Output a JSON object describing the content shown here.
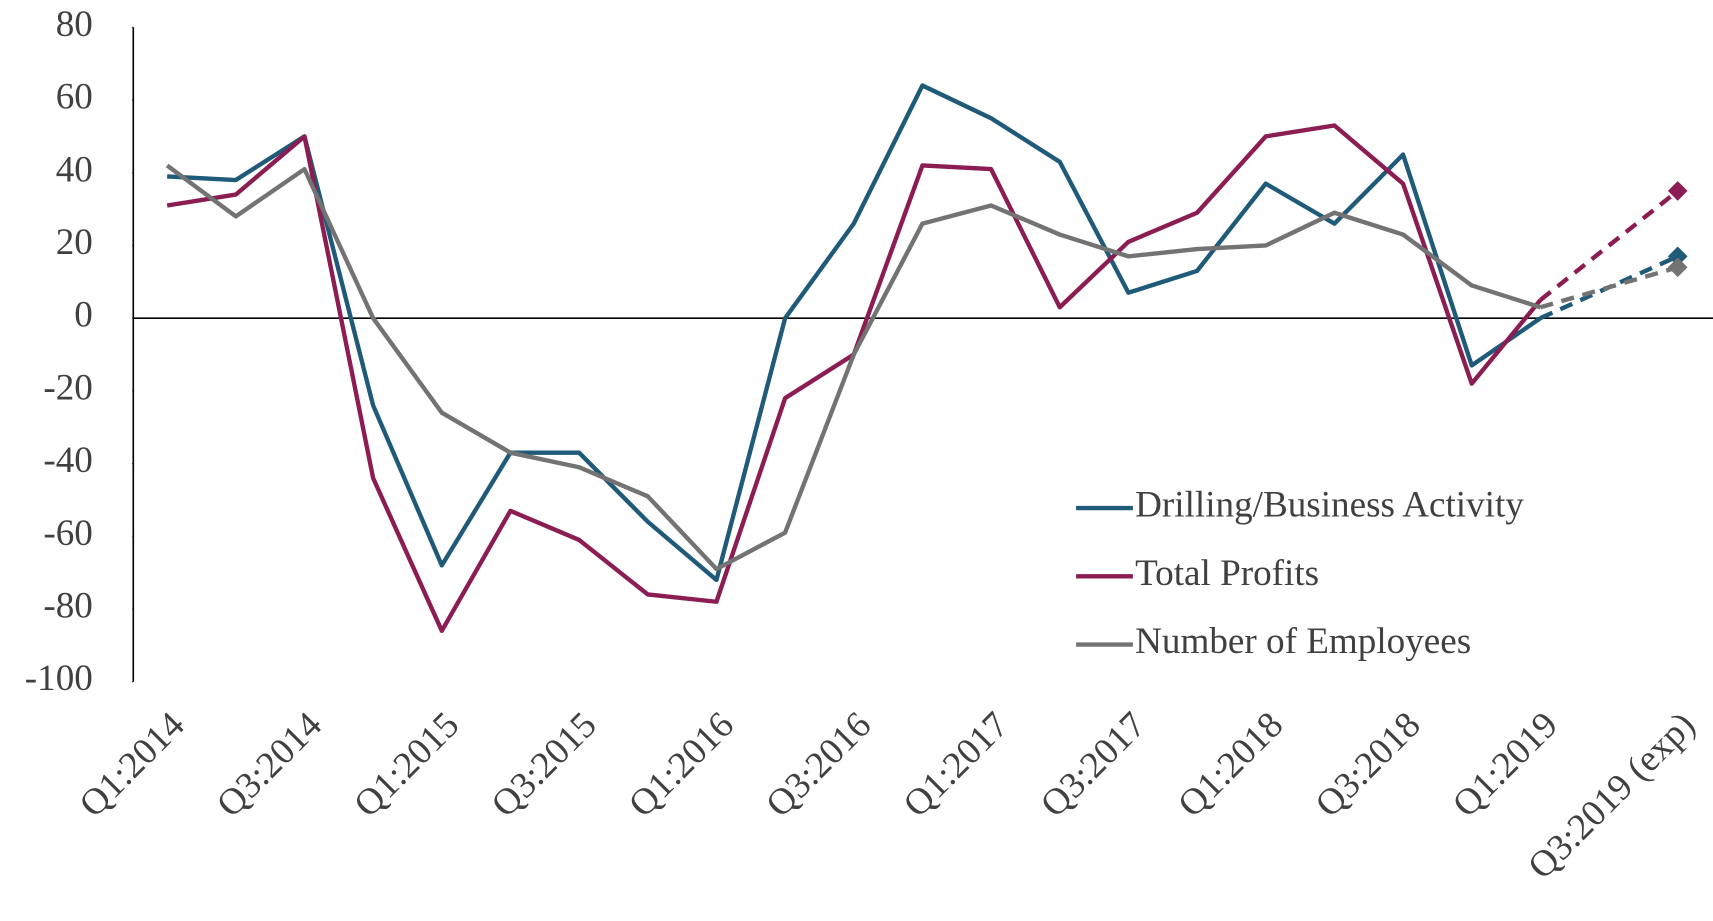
{
  "chart_data": {
    "type": "line",
    "categories": [
      "Q1:2014",
      null,
      "Q3:2014",
      null,
      "Q1:2015",
      null,
      "Q3:2015",
      null,
      "Q1:2016",
      null,
      "Q3:2016",
      null,
      "Q1:2017",
      null,
      "Q3:2017",
      null,
      "Q1:2018",
      null,
      "Q3:2018",
      null,
      "Q1:2019",
      null,
      "Q3:2019 (exp)"
    ],
    "series": [
      {
        "name": "Drilling/Business Activity",
        "color": "#1f5a78",
        "values": [
          39,
          38,
          50,
          -24,
          -68,
          -37,
          -37,
          -56,
          -72,
          0,
          26,
          64,
          55,
          43,
          7,
          13,
          37,
          26,
          45,
          -13,
          0,
          null,
          17
        ]
      },
      {
        "name": "Total Profits",
        "color": "#8b1d52",
        "values": [
          31,
          34,
          50,
          -44,
          -86,
          -53,
          -61,
          -76,
          -78,
          -22,
          -10,
          42,
          41,
          3,
          21,
          29,
          50,
          53,
          37,
          -18,
          5,
          null,
          35
        ]
      },
      {
        "name": "Number of Employees",
        "color": "#737373",
        "values": [
          42,
          28,
          41,
          0,
          -26,
          -37,
          -41,
          -49,
          -69,
          -59,
          -10,
          26,
          31,
          23,
          17,
          19,
          20,
          29,
          23,
          9,
          3,
          null,
          14
        ]
      }
    ],
    "ylim": [
      -100,
      80
    ],
    "yticks": [
      -100,
      -80,
      -60,
      -40,
      -20,
      0,
      20,
      40,
      60,
      80
    ],
    "grid": false,
    "legend": "lower right"
  }
}
